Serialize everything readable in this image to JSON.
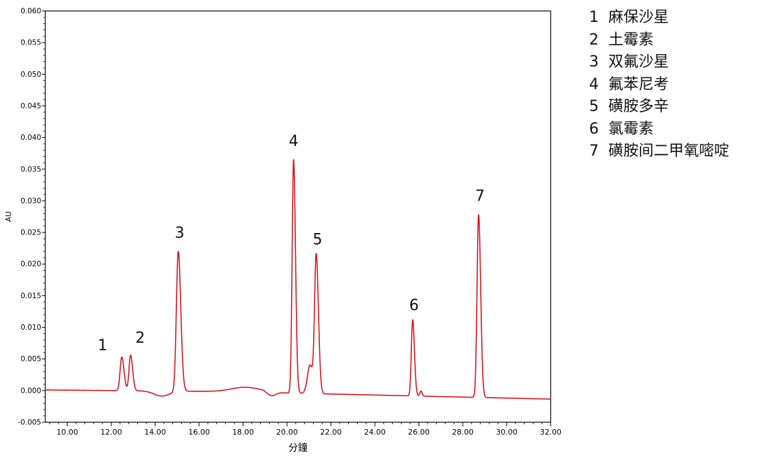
{
  "chart_data": {
    "type": "line",
    "ylabel": "AU",
    "xlabel": "分鐘",
    "xlim": [
      9.0,
      32.0
    ],
    "ylim": [
      -0.005,
      0.06
    ],
    "x_ticks": [
      "10.00",
      "12.00",
      "14.00",
      "16.00",
      "18.00",
      "20.00",
      "22.00",
      "24.00",
      "26.00",
      "28.00",
      "30.00",
      "32.00"
    ],
    "y_ticks": [
      "-0.005",
      "0.000",
      "0.005",
      "0.010",
      "0.015",
      "0.020",
      "0.025",
      "0.030",
      "0.035",
      "0.040",
      "0.045",
      "0.050",
      "0.055",
      "0.060"
    ],
    "grid": false,
    "line_color": "#d7141e",
    "peaks": [
      {
        "label": "1",
        "x": 12.48,
        "y": 0.0053
      },
      {
        "label": "2",
        "x": 12.88,
        "y": 0.0056
      },
      {
        "label": "3",
        "x": 15.05,
        "y": 0.022
      },
      {
        "label": "4",
        "x": 20.3,
        "y": 0.0365
      },
      {
        "label": "5",
        "x": 21.33,
        "y": 0.0214
      },
      {
        "label": "6",
        "x": 25.72,
        "y": 0.0112
      },
      {
        "label": "7",
        "x": 28.72,
        "y": 0.0278
      }
    ],
    "legend": [
      {
        "num": "1",
        "name": "麻保沙星"
      },
      {
        "num": "2",
        "name": "土霉素"
      },
      {
        "num": "3",
        "name": "双氟沙星"
      },
      {
        "num": "4",
        "name": "氟苯尼考"
      },
      {
        "num": "5",
        "name": "磺胺多辛"
      },
      {
        "num": "6",
        "name": "氯霉素"
      },
      {
        "num": "7",
        "name": "磺胺间二甲氧嘧啶"
      }
    ],
    "legend_placement": "right"
  }
}
